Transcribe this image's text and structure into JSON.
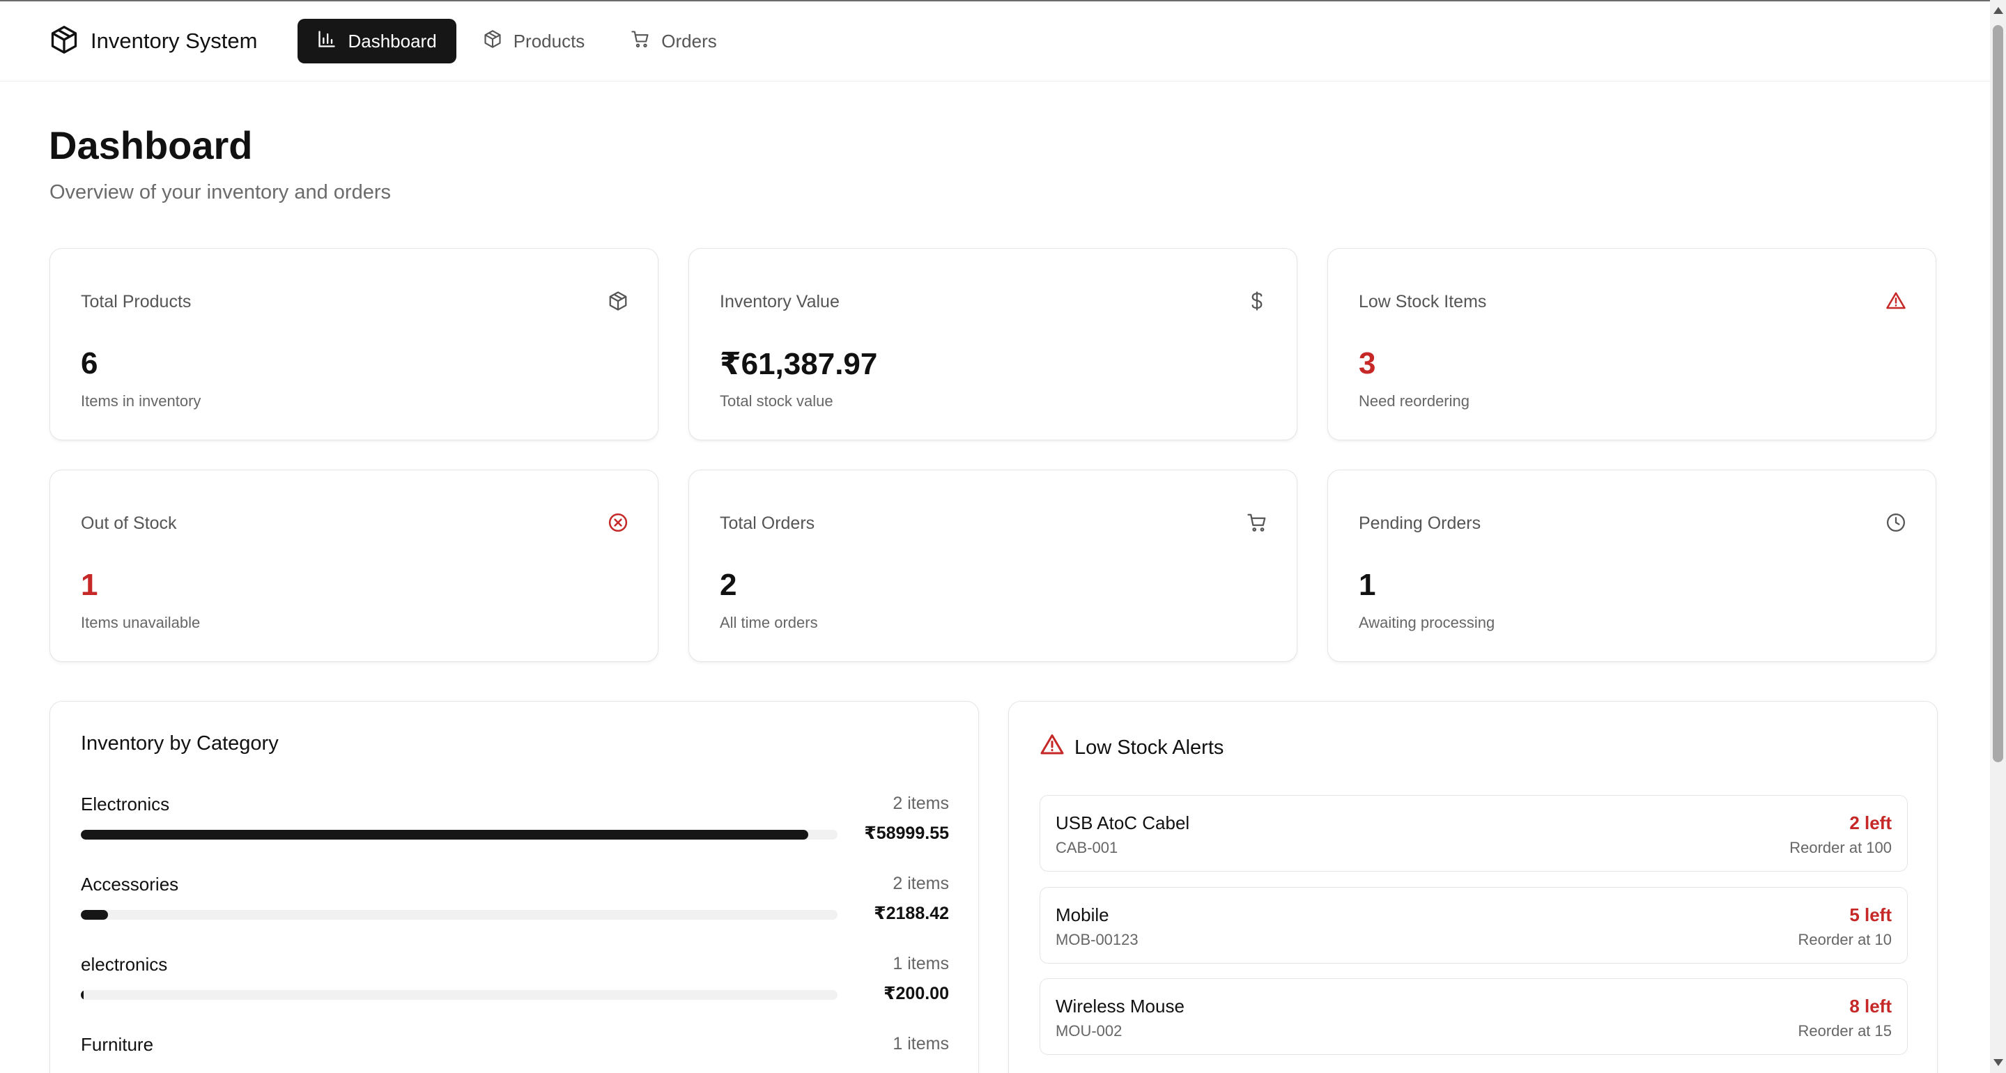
{
  "brand": {
    "name": "Inventory System"
  },
  "nav": [
    {
      "label": "Dashboard",
      "icon": "bar-chart-icon",
      "active": true
    },
    {
      "label": "Products",
      "icon": "box-icon",
      "active": false
    },
    {
      "label": "Orders",
      "icon": "cart-icon",
      "active": false
    }
  ],
  "header": {
    "title": "Dashboard",
    "subtitle": "Overview of your inventory and orders"
  },
  "stats": [
    {
      "label": "Total Products",
      "icon": "box-icon",
      "value": "6",
      "sub": "Items in inventory",
      "value_color": "#111111"
    },
    {
      "label": "Inventory Value",
      "icon": "dollar-icon",
      "value": "₹61,387.97",
      "sub": "Total stock value",
      "value_color": "#111111"
    },
    {
      "label": "Low Stock Items",
      "icon": "warning-icon",
      "value": "3",
      "sub": "Need reordering",
      "value_color": "#c62828"
    },
    {
      "label": "Out of Stock",
      "icon": "x-circle-icon",
      "value": "1",
      "sub": "Items unavailable",
      "value_color": "#c62828"
    },
    {
      "label": "Total Orders",
      "icon": "cart-icon",
      "value": "2",
      "sub": "All time orders",
      "value_color": "#111111"
    },
    {
      "label": "Pending Orders",
      "icon": "clock-icon",
      "value": "1",
      "sub": "Awaiting processing",
      "value_color": "#111111"
    }
  ],
  "category_panel": {
    "title": "Inventory by Category",
    "items": [
      {
        "name": "Electronics",
        "count": "2 items",
        "value": "₹58999.55",
        "share": 0.961
      },
      {
        "name": "Accessories",
        "count": "2 items",
        "value": "₹2188.42",
        "share": 0.036
      },
      {
        "name": "electronics",
        "count": "1 items",
        "value": "₹200.00",
        "share": 0.003
      },
      {
        "name": "Furniture",
        "count": "1 items",
        "value": "",
        "share": 0
      }
    ]
  },
  "alerts_panel": {
    "title": "Low Stock Alerts",
    "icon": "warning-icon",
    "items": [
      {
        "name": "USB AtoC Cabel",
        "sku": "CAB-001",
        "left": "2 left",
        "reorder": "Reorder at 100"
      },
      {
        "name": "Mobile",
        "sku": "MOB-00123",
        "left": "5 left",
        "reorder": "Reorder at 10"
      },
      {
        "name": "Wireless Mouse",
        "sku": "MOU-002",
        "left": "8 left",
        "reorder": "Reorder at 15"
      }
    ]
  },
  "colors": {
    "accent": "#161616",
    "danger": "#c62828",
    "muted": "#666666"
  }
}
